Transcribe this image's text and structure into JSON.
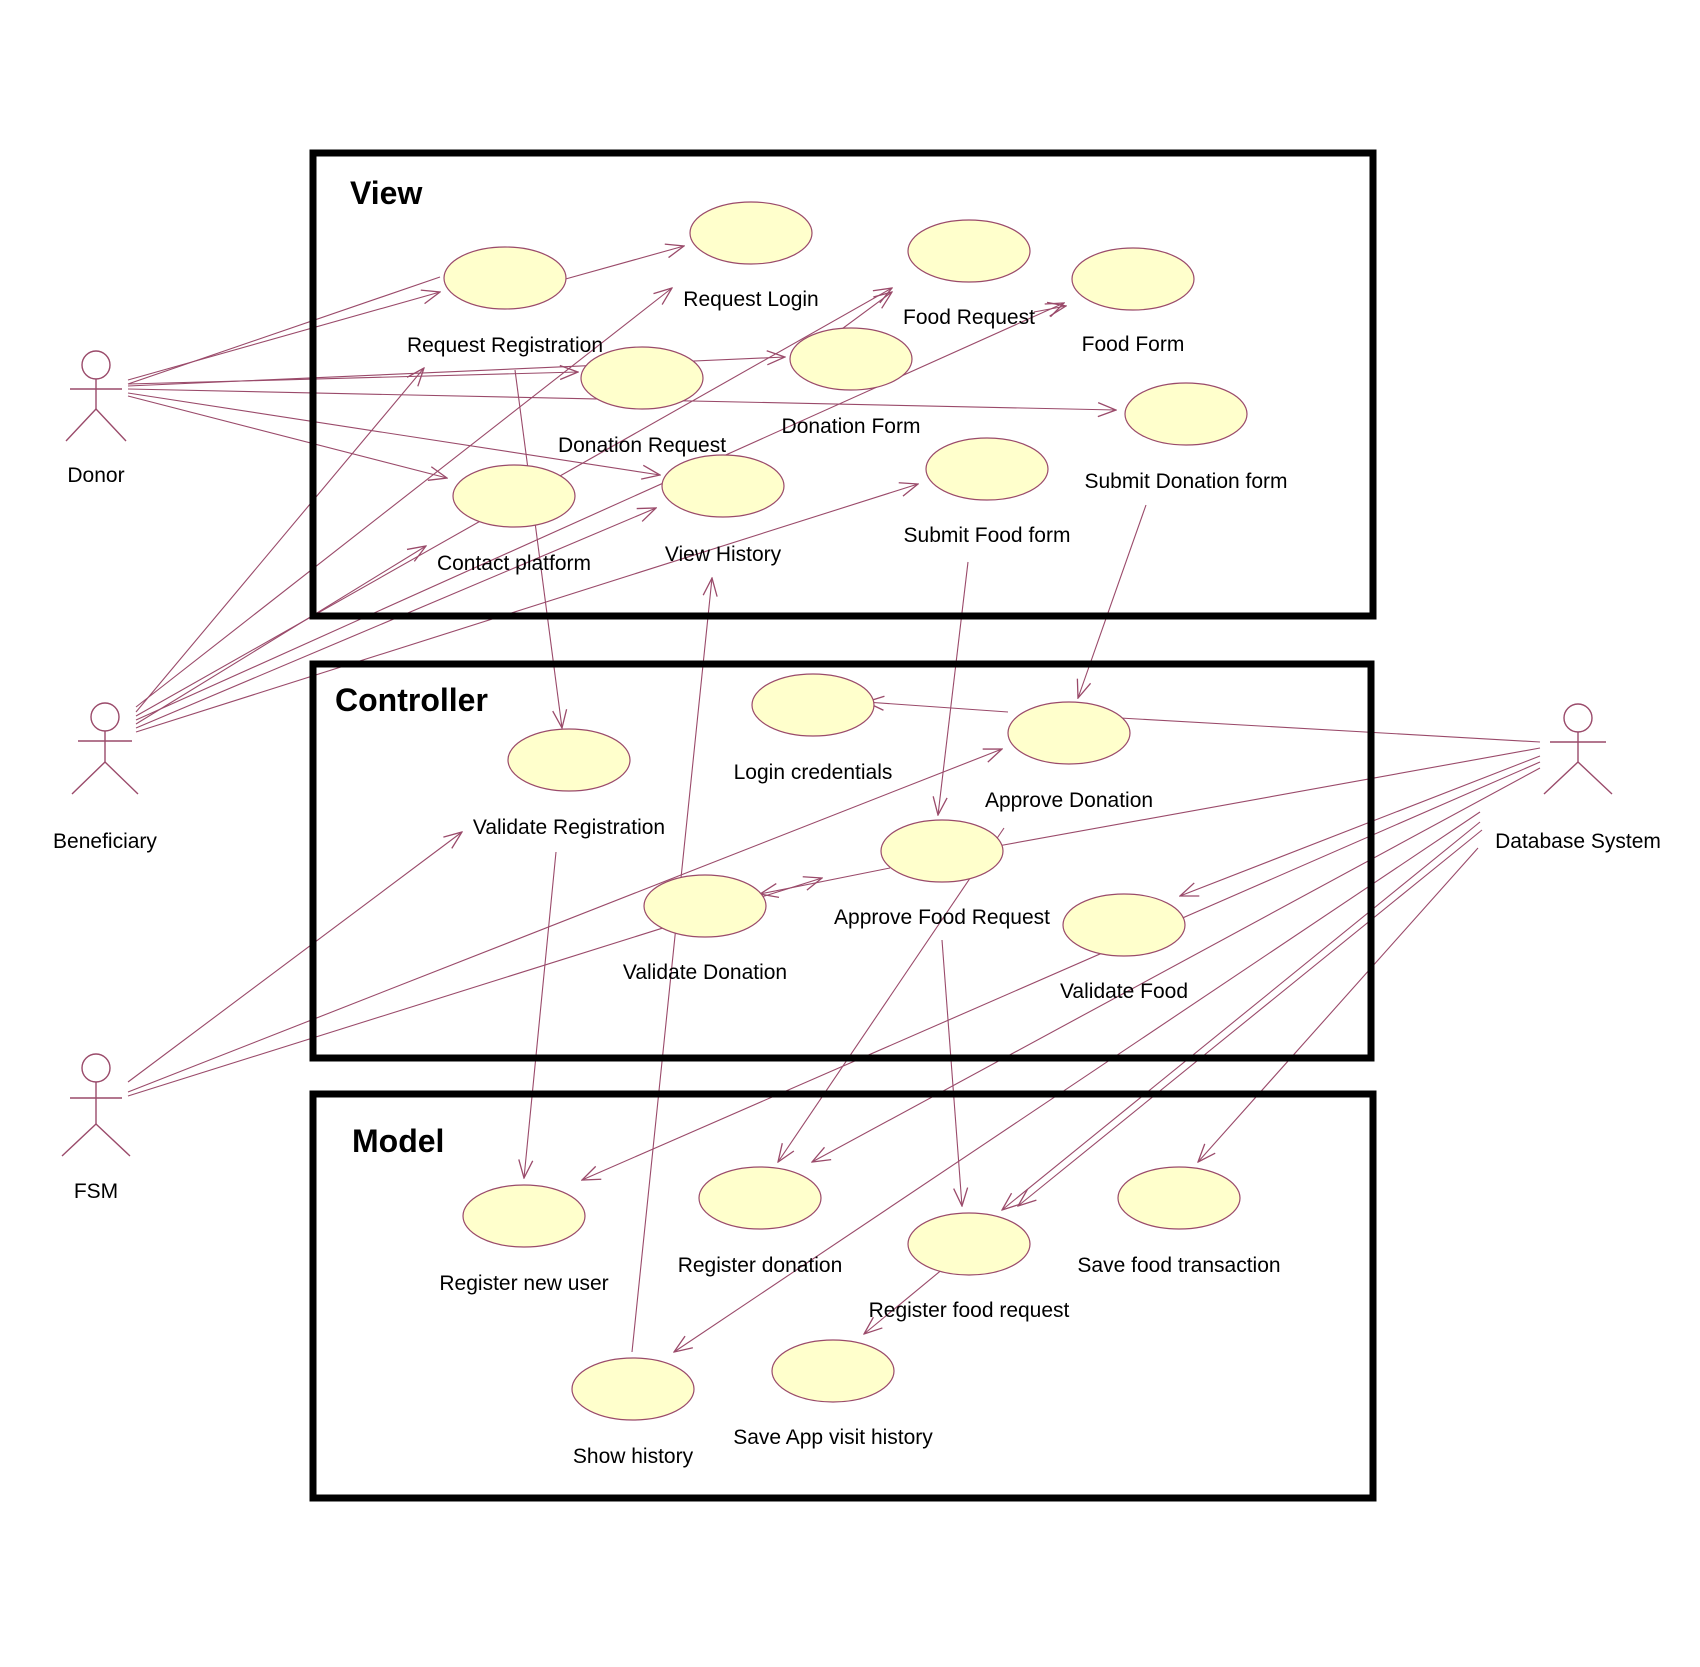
{
  "packages": [
    {
      "id": "view",
      "title": "View"
    },
    {
      "id": "controller",
      "title": "Controller"
    },
    {
      "id": "model",
      "title": "Model"
    }
  ],
  "actors": [
    {
      "id": "donor",
      "label": "Donor"
    },
    {
      "id": "beneficiary",
      "label": "Beneficiary"
    },
    {
      "id": "fsm",
      "label": "FSM"
    },
    {
      "id": "database-system",
      "label": "Database System"
    }
  ],
  "use_cases": [
    {
      "id": "request-registration",
      "label": "Request Registration"
    },
    {
      "id": "request-login",
      "label": "Request Login"
    },
    {
      "id": "food-request",
      "label": "Food Request"
    },
    {
      "id": "food-form",
      "label": "Food Form"
    },
    {
      "id": "donation-request",
      "label": "Donation Request"
    },
    {
      "id": "donation-form",
      "label": "Donation Form"
    },
    {
      "id": "submit-donation-form",
      "label": "Submit Donation form"
    },
    {
      "id": "contact-platform",
      "label": "Contact platform"
    },
    {
      "id": "view-history",
      "label": "View History"
    },
    {
      "id": "submit-food-form",
      "label": "Submit Food form"
    },
    {
      "id": "login-credentials",
      "label": "Login credentials"
    },
    {
      "id": "approve-donation",
      "label": "Approve Donation"
    },
    {
      "id": "validate-registration",
      "label": "Validate Registration"
    },
    {
      "id": "approve-food-request",
      "label": "Approve Food Request"
    },
    {
      "id": "validate-donation",
      "label": "Validate Donation"
    },
    {
      "id": "validate-food",
      "label": "Validate Food"
    },
    {
      "id": "register-new-user",
      "label": "Register new user"
    },
    {
      "id": "register-donation",
      "label": "Register donation"
    },
    {
      "id": "register-food-request",
      "label": "Register food request"
    },
    {
      "id": "save-food-transaction",
      "label": "Save food transaction"
    },
    {
      "id": "show-history",
      "label": "Show history"
    },
    {
      "id": "save-app-visit-history",
      "label": "Save App visit history"
    }
  ],
  "colors": {
    "use_case_fill": "#ffffcc",
    "line": "#9a4a6a",
    "package_border": "#000000"
  }
}
